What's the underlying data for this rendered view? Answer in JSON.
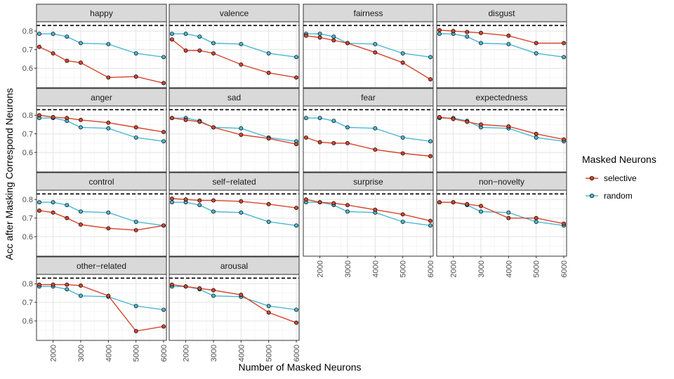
{
  "chart_data": {
    "type": "line",
    "facet_layout": "4-column grid, 14 panels",
    "xlabel": "Number of Masked Neurons",
    "ylabel": "Acc after Masking Correspond Neurons",
    "x": [
      1500,
      2000,
      2500,
      3000,
      4000,
      5000,
      6000
    ],
    "x_ticks": [
      2000,
      3000,
      4000,
      5000,
      6000
    ],
    "x_tick_labels": [
      "2000",
      "3000",
      "4000",
      "5000",
      "6000"
    ],
    "xlim": [
      1400,
      6100
    ],
    "y_ticks": [
      0.6,
      0.7,
      0.8
    ],
    "y_tick_labels": [
      "0.6",
      "0.7",
      "0.8"
    ],
    "ylim": [
      0.495,
      0.85
    ],
    "reference_line": 0.83,
    "grid": true,
    "legend": {
      "title": "Masked Neurons",
      "placement": "right",
      "entries": [
        {
          "key": "selective",
          "label": "selective",
          "color": "#d6452e"
        },
        {
          "key": "random",
          "label": "random",
          "color": "#4bb8d2"
        }
      ]
    },
    "random_values": [
      0.785,
      0.785,
      0.77,
      0.735,
      0.73,
      0.68,
      0.66
    ],
    "panels": [
      {
        "title": "happy",
        "selective": [
          0.715,
          0.68,
          0.64,
          0.63,
          0.55,
          0.555,
          0.52
        ]
      },
      {
        "title": "valence",
        "selective": [
          0.755,
          0.695,
          0.695,
          0.68,
          0.62,
          0.575,
          0.55
        ]
      },
      {
        "title": "fairness",
        "selective": [
          0.775,
          0.765,
          0.75,
          0.735,
          0.685,
          0.63,
          0.54
        ]
      },
      {
        "title": "disgust",
        "selective": [
          0.805,
          0.8,
          0.795,
          0.79,
          0.775,
          0.735,
          0.735
        ]
      },
      {
        "title": "anger",
        "selective": [
          0.8,
          0.79,
          0.785,
          0.775,
          0.76,
          0.735,
          0.71
        ]
      },
      {
        "title": "sad",
        "selective": [
          0.785,
          0.775,
          0.765,
          0.735,
          0.695,
          0.675,
          0.645
        ]
      },
      {
        "title": "fear",
        "selective": [
          0.68,
          0.655,
          0.65,
          0.65,
          0.615,
          0.595,
          0.58
        ]
      },
      {
        "title": "expectedness",
        "selective": [
          0.79,
          0.78,
          0.765,
          0.75,
          0.74,
          0.7,
          0.67
        ]
      },
      {
        "title": "control",
        "selective": [
          0.74,
          0.73,
          0.7,
          0.665,
          0.645,
          0.635,
          0.66
        ]
      },
      {
        "title": "self−related",
        "selective": [
          0.805,
          0.8,
          0.795,
          0.795,
          0.79,
          0.775,
          0.755
        ]
      },
      {
        "title": "surprise",
        "selective": [
          0.8,
          0.785,
          0.78,
          0.77,
          0.745,
          0.72,
          0.685
        ]
      },
      {
        "title": "non−novelty",
        "selective": [
          0.785,
          0.785,
          0.775,
          0.765,
          0.7,
          0.7,
          0.67
        ]
      },
      {
        "title": "other−related",
        "selective": [
          0.795,
          0.795,
          0.795,
          0.79,
          0.735,
          0.545,
          0.57
        ]
      },
      {
        "title": "arousal",
        "selective": [
          0.795,
          0.785,
          0.775,
          0.765,
          0.74,
          0.645,
          0.59
        ]
      }
    ]
  }
}
